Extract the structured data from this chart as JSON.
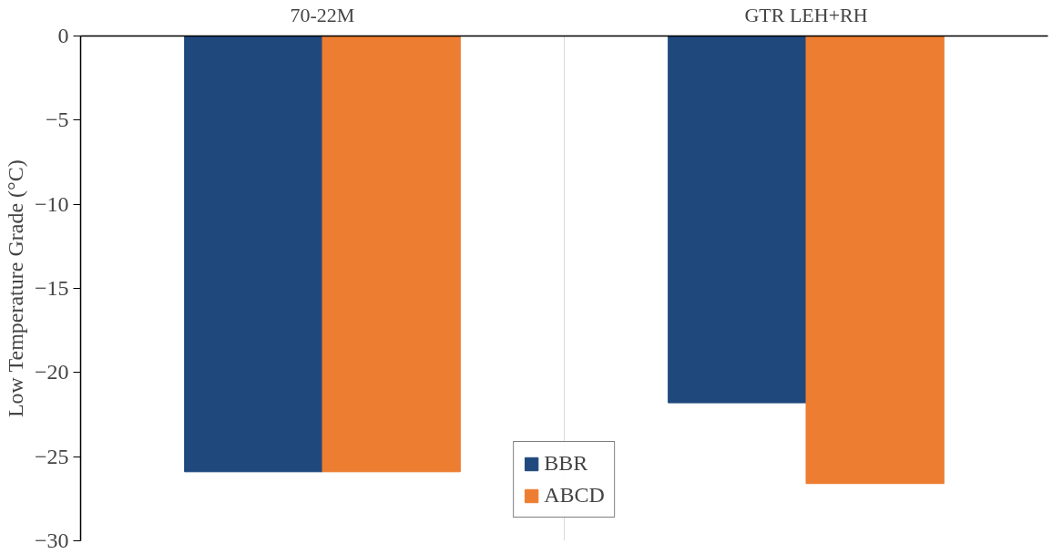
{
  "chart_data": {
    "type": "bar",
    "ylabel": "Low Temperature Grade (°C)",
    "categories": [
      "70-22M",
      "GTR LEH+RH"
    ],
    "series": [
      {
        "name": "BBR",
        "color": "#1f497d",
        "values": [
          -25.9,
          -21.8
        ]
      },
      {
        "name": "ABCD",
        "color": "#ed7d31",
        "values": [
          -25.9,
          -26.6
        ]
      }
    ],
    "ylim": [
      -30,
      0
    ],
    "yticks": [
      0,
      -5,
      -10,
      -15,
      -20,
      -25,
      -30
    ],
    "grid": "x",
    "legend": "bottom"
  }
}
